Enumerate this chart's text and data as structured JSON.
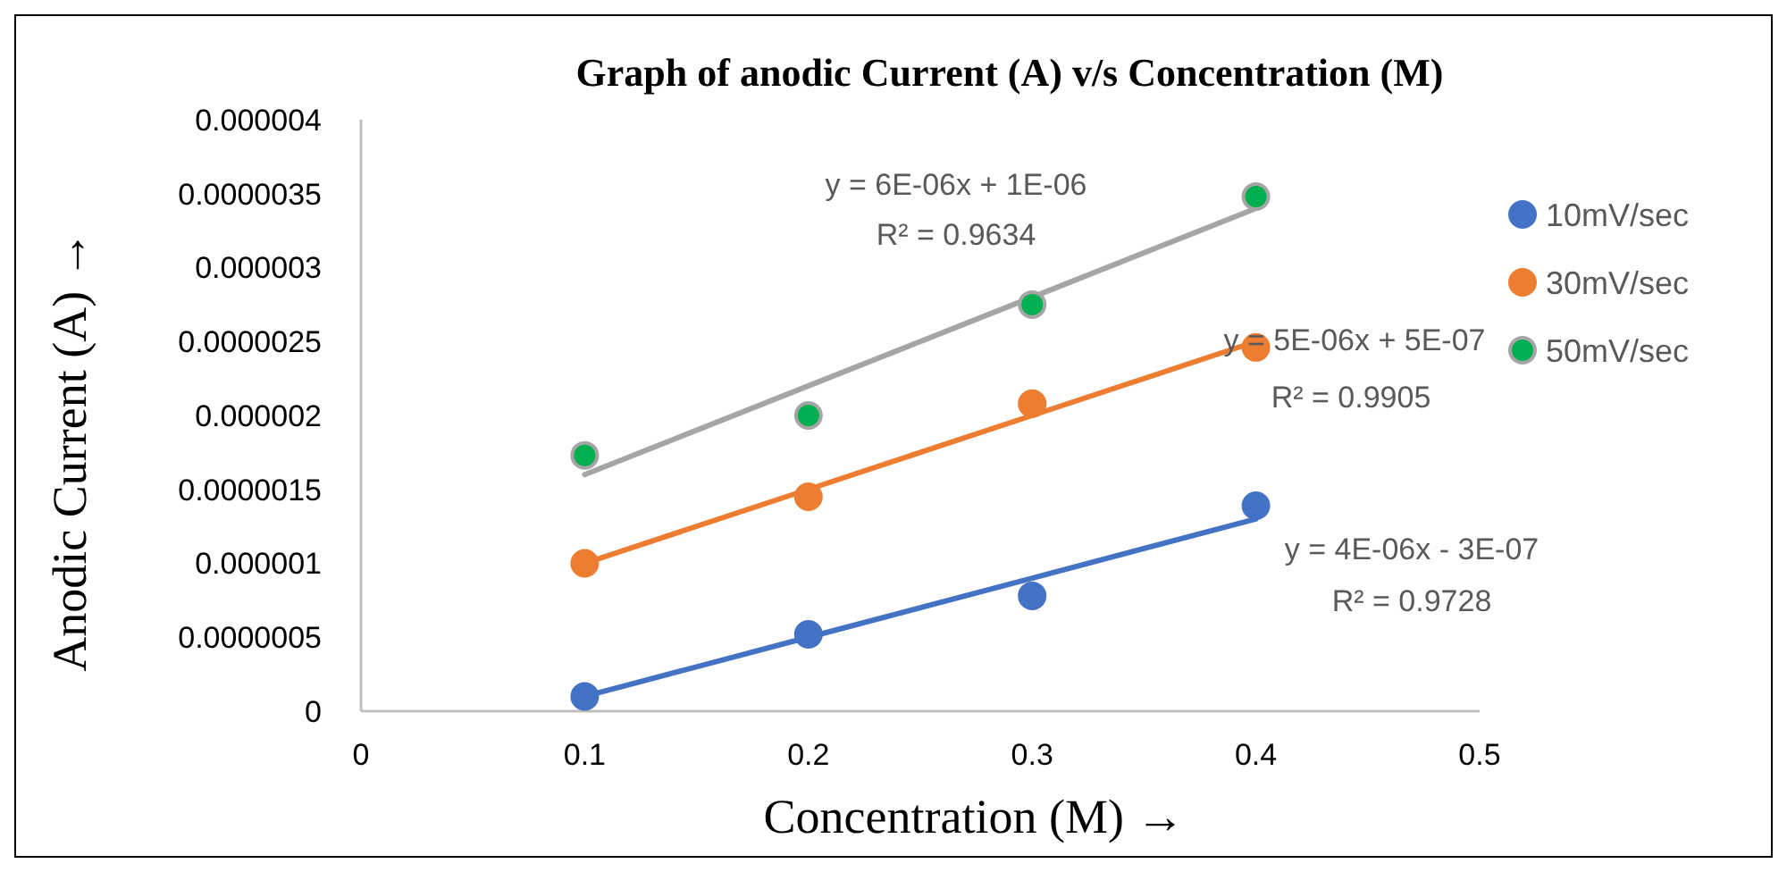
{
  "chart_data": {
    "type": "scatter",
    "title": "Graph of anodic Current (A) v/s Concentration (M)",
    "xlabel": "Concentration (M) →",
    "ylabel": "Anodic Current (A) →",
    "x": [
      0.1,
      0.2,
      0.3,
      0.4
    ],
    "series": [
      {
        "name": "10mV/sec",
        "color": "#4472c4",
        "values": [
          1e-07,
          5.2e-07,
          7.8e-07,
          1.39e-06
        ]
      },
      {
        "name": "30mV/sec",
        "color": "#ed7d31",
        "values": [
          1e-06,
          1.45e-06,
          2.08e-06,
          2.46e-06
        ]
      },
      {
        "name": "50mV/sec",
        "color": "#00b050",
        "values": [
          1.73e-06,
          2e-06,
          2.75e-06,
          3.48e-06
        ]
      },
      {
        "type": "line",
        "marker": "none",
        "color": "#4472c4",
        "values": [
          1e-07,
          5e-07,
          9e-07,
          1.3e-06
        ]
      },
      {
        "type": "line",
        "marker": "none",
        "color": "#ed7d31",
        "values": [
          1e-06,
          1.5e-06,
          2e-06,
          2.5e-06
        ]
      },
      {
        "type": "line",
        "marker": "none",
        "color": "#a5a5a5",
        "values": [
          1.6e-06,
          2.2e-06,
          2.8e-06,
          3.4e-06
        ]
      }
    ],
    "xlim": [
      0,
      0.5
    ],
    "xticks": [
      0,
      0.1,
      0.2,
      0.3,
      0.4,
      0.5
    ],
    "ylim": [
      0,
      4e-06
    ],
    "yticks": [
      0,
      {
        "value": 5e-07,
        "label": "0.0000005"
      },
      {
        "value": 1e-06,
        "label": "0.000001"
      },
      {
        "value": 1.5e-06,
        "label": "0.0000015"
      },
      {
        "value": 2e-06,
        "label": "0.000002"
      },
      {
        "value": 2.5e-06,
        "label": "0.0000025"
      },
      {
        "value": 3e-06,
        "label": "0.000003"
      },
      {
        "value": 3.5e-06,
        "label": "0.0000035"
      },
      {
        "value": 4e-06,
        "label": "0.000004"
      }
    ],
    "annotations": [
      "y = 6E-06x + 1E-06",
      "R² = 0.9634",
      "y = 5E-06x + 5E-07",
      "R² = 0.9905",
      "y = 4E-06x - 3E-07",
      "R² = 0.9728"
    ],
    "legend": "right",
    "marker": "circle",
    "grid": false
  }
}
